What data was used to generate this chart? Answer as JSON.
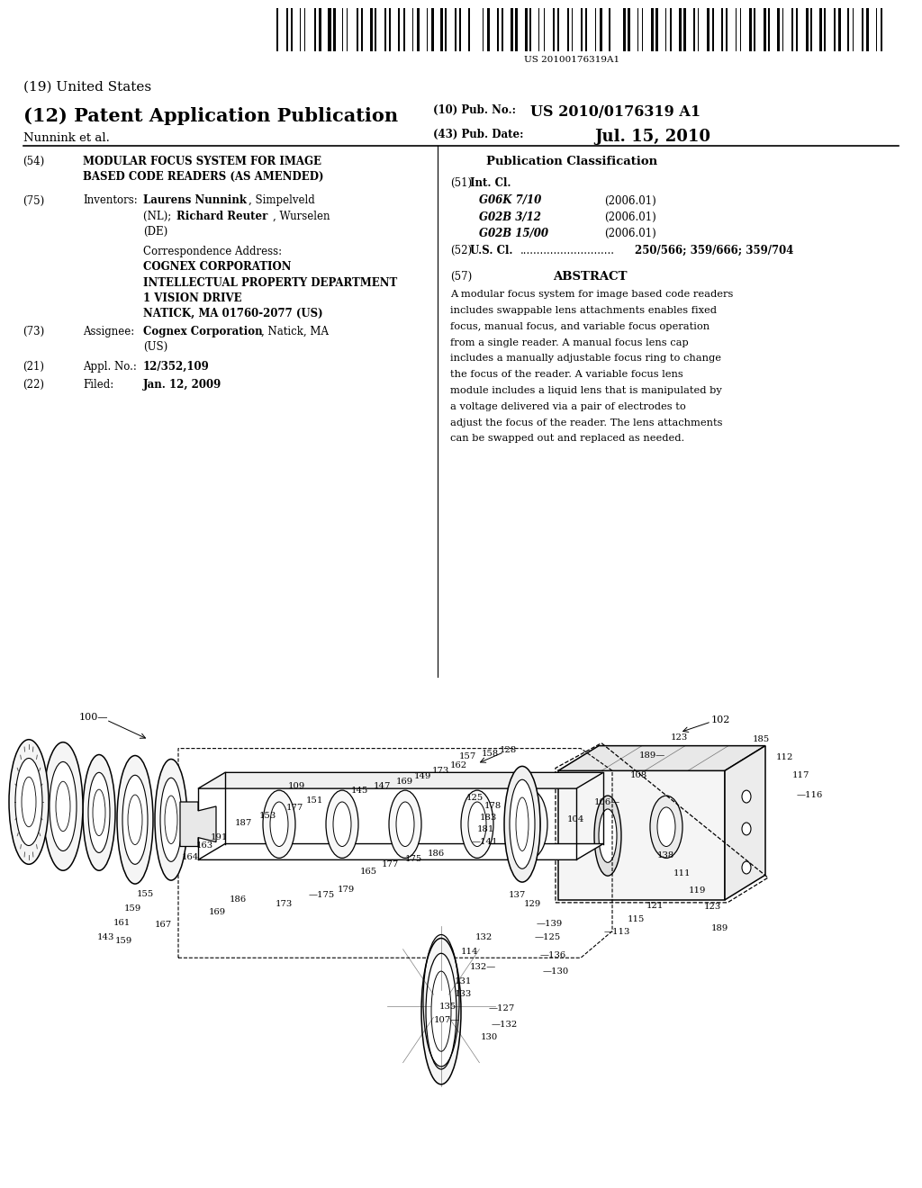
{
  "background_color": "#ffffff",
  "barcode_text": "US 20100176319A1",
  "title_19": "(19) United States",
  "title_12": "(12) Patent Application Publication",
  "pub_no_label": "(10) Pub. No.:",
  "pub_no_value": "US 2010/0176319 A1",
  "authors": "Nunnink et al.",
  "pub_date_label": "(43) Pub. Date:",
  "pub_date_value": "Jul. 15, 2010",
  "field_54_label": "(54)",
  "field_54_line1": "MODULAR FOCUS SYSTEM FOR IMAGE",
  "field_54_line2": "BASED CODE READERS (AS AMENDED)",
  "field_75_label": "(75)",
  "field_75_name": "Inventors:",
  "correspondence_label": "Correspondence Address:",
  "correspondence_lines": [
    "COGNEX CORPORATION",
    "INTELLECTUAL PROPERTY DEPARTMENT",
    "1 VISION DRIVE",
    "NATICK, MA 01760-2077 (US)"
  ],
  "field_73_label": "(73)",
  "field_73_name": "Assignee:",
  "field_21_label": "(21)",
  "field_21_name": "Appl. No.:",
  "field_21_value": "12/352,109",
  "field_22_label": "(22)",
  "field_22_name": "Filed:",
  "field_22_value": "Jan. 12, 2009",
  "pub_class_header": "Publication Classification",
  "field_51_label": "(51)",
  "field_51_name": "Int. Cl.",
  "field_51_classes": [
    [
      "G06K 7/10",
      "(2006.01)"
    ],
    [
      "G02B 3/12",
      "(2006.01)"
    ],
    [
      "G02B 15/00",
      "(2006.01)"
    ]
  ],
  "field_52_label": "(52)",
  "field_52_name": "U.S. Cl.",
  "field_52_dots": "............................",
  "field_52_value": "250/566; 359/666; 359/704",
  "field_57_label": "(57)",
  "field_57_name": "ABSTRACT",
  "abstract_text": "A modular focus system for image based code readers includes swappable lens attachments enables fixed focus, manual focus, and variable focus operation from a single reader. A manual focus lens cap includes a manually adjustable focus ring to change the focus of the reader. A variable focus lens module includes a liquid lens that is manipulated by a voltage delivered via a pair of electrodes to adjust the focus of the reader. The lens attachments can be swapped out and replaced as needed."
}
